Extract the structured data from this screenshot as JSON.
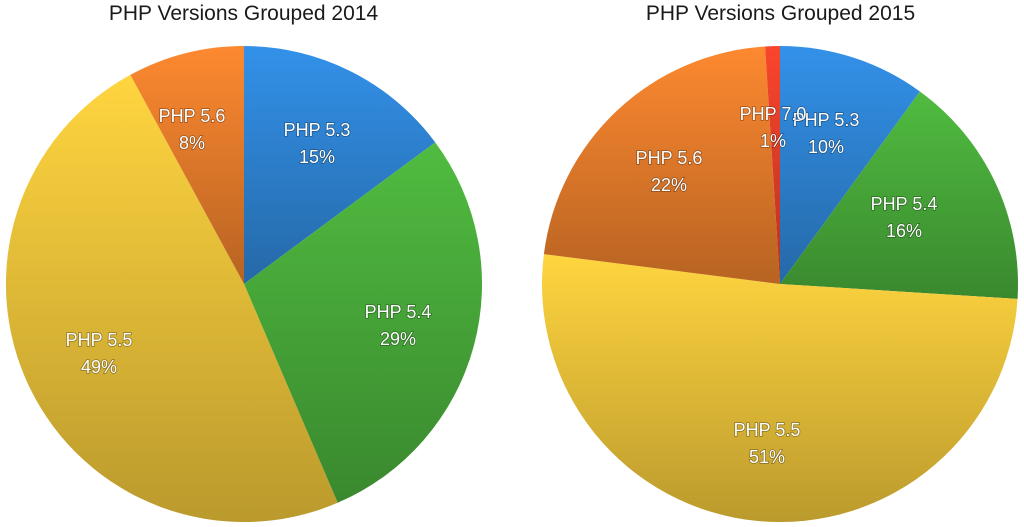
{
  "chart_data": [
    {
      "type": "pie",
      "title": "PHP Versions Grouped 2014",
      "slices": [
        {
          "label": "PHP 5.3",
          "value": 15,
          "display": "15%",
          "color": "#2f86d8"
        },
        {
          "label": "PHP 5.4",
          "value": 29,
          "display": "29%",
          "color": "#4aae3b"
        },
        {
          "label": "PHP 5.5",
          "value": 49,
          "display": "49%",
          "color": "#f0c53a"
        },
        {
          "label": "PHP 5.6",
          "value": 8,
          "display": "8%",
          "color": "#ea7f2c"
        }
      ]
    },
    {
      "type": "pie",
      "title": "PHP Versions Grouped 2015",
      "slices": [
        {
          "label": "PHP 5.3",
          "value": 10,
          "display": "10%",
          "color": "#2f86d8"
        },
        {
          "label": "PHP 5.4",
          "value": 16,
          "display": "16%",
          "color": "#4aae3b"
        },
        {
          "label": "PHP 5.5",
          "value": 51,
          "display": "51%",
          "color": "#f0c53a"
        },
        {
          "label": "PHP 5.6",
          "value": 22,
          "display": "22%",
          "color": "#ea7f2c"
        },
        {
          "label": "PHP 7.0",
          "value": 1,
          "display": "1%",
          "color": "#e8402a"
        }
      ]
    }
  ]
}
